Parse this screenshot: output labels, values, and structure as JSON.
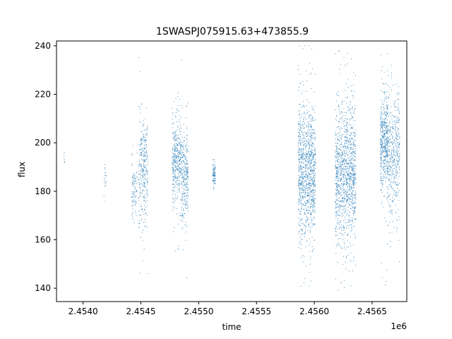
{
  "chart_data": {
    "type": "scatter",
    "title": "1SWASPJ075915.63+473855.9",
    "xlabel": "time",
    "ylabel": "flux",
    "x_offset_label": "1e6",
    "xlim": [
      2453770,
      2456800
    ],
    "ylim": [
      134.5,
      242
    ],
    "x_ticks": [
      {
        "value": 2454000,
        "label": "2.4540"
      },
      {
        "value": 2454500,
        "label": "2.4545"
      },
      {
        "value": 2455000,
        "label": "2.4550"
      },
      {
        "value": 2455500,
        "label": "2.4555"
      },
      {
        "value": 2456000,
        "label": "2.4560"
      },
      {
        "value": 2456500,
        "label": "2.4565"
      }
    ],
    "y_ticks": [
      {
        "value": 140,
        "label": "140"
      },
      {
        "value": 160,
        "label": "160"
      },
      {
        "value": 180,
        "label": "180"
      },
      {
        "value": 200,
        "label": "200"
      },
      {
        "value": 220,
        "label": "220"
      },
      {
        "value": 240,
        "label": "240"
      }
    ],
    "grid": false,
    "marker_color": "#1f77b4",
    "observing_seasons": [
      {
        "x_start": 2453835,
        "x_end": 2453840,
        "y_center": 194,
        "y_spread": 3,
        "y_min": 192,
        "y_max": 197,
        "n": 8
      },
      {
        "x_start": 2454180,
        "x_end": 2454200,
        "y_center": 185,
        "y_spread": 5,
        "y_min": 166,
        "y_max": 192,
        "n": 18
      },
      {
        "x_start": 2454420,
        "x_end": 2454470,
        "y_center": 181,
        "y_spread": 6,
        "y_min": 149,
        "y_max": 224,
        "n": 90
      },
      {
        "x_start": 2454480,
        "x_end": 2454560,
        "y_center": 188,
        "y_spread": 11,
        "y_min": 140,
        "y_max": 238,
        "n": 320
      },
      {
        "x_start": 2454770,
        "x_end": 2454850,
        "y_center": 192,
        "y_spread": 9,
        "y_min": 150,
        "y_max": 222,
        "n": 380
      },
      {
        "x_start": 2454850,
        "x_end": 2454910,
        "y_center": 186,
        "y_spread": 10,
        "y_min": 143,
        "y_max": 238,
        "n": 280
      },
      {
        "x_start": 2455120,
        "x_end": 2455145,
        "y_center": 187,
        "y_spread": 3,
        "y_min": 180,
        "y_max": 193,
        "n": 80
      },
      {
        "x_start": 2455860,
        "x_end": 2456010,
        "y_center": 188,
        "y_spread": 14,
        "y_min": 139,
        "y_max": 240,
        "n": 1100
      },
      {
        "x_start": 2456180,
        "x_end": 2456360,
        "y_center": 187,
        "y_spread": 14,
        "y_min": 139,
        "y_max": 240,
        "n": 1200
      },
      {
        "x_start": 2456570,
        "x_end": 2456640,
        "y_center": 200,
        "y_spread": 10,
        "y_min": 140,
        "y_max": 238,
        "n": 500
      },
      {
        "x_start": 2456640,
        "x_end": 2456740,
        "y_center": 195,
        "y_spread": 12,
        "y_min": 148,
        "y_max": 232,
        "n": 420
      }
    ]
  }
}
